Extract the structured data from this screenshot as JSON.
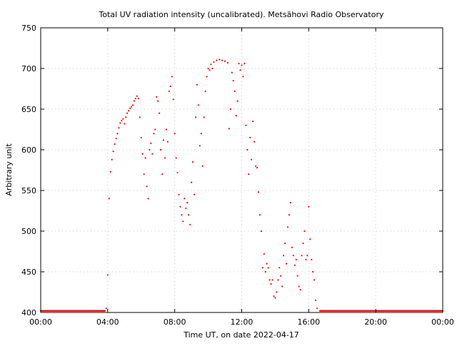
{
  "chart_data": {
    "type": "scatter",
    "title": "Total UV radiation intensity (uncalibrated). Metsähovi Radio Observatory",
    "xlabel": "Time UT, on date 2022-04-17",
    "ylabel": "Arbitrary unit",
    "xlim": [
      "00:00",
      "24:00"
    ],
    "ylim": [
      400,
      750
    ],
    "x_ticks": [
      "00:00",
      "04:00",
      "08:00",
      "12:00",
      "16:00",
      "20:00",
      "00:00"
    ],
    "y_ticks": [
      400,
      450,
      500,
      550,
      600,
      650,
      700,
      750
    ],
    "grid": true,
    "marker_color": "#ff0000",
    "series": [
      {
        "points": [
          [
            "00:00",
            402
          ],
          [
            "01:00",
            402
          ],
          [
            "02:00",
            402
          ],
          [
            "03:00",
            402
          ],
          [
            "03:50",
            402
          ],
          [
            "03:55",
            405
          ],
          [
            "04:00",
            446
          ],
          [
            "04:05",
            540
          ],
          [
            "04:10",
            573
          ],
          [
            "04:15",
            588
          ],
          [
            "04:20",
            598
          ],
          [
            "04:25",
            607
          ],
          [
            "04:30",
            614
          ],
          [
            "04:35",
            620
          ],
          [
            "04:40",
            627
          ],
          [
            "04:45",
            633
          ],
          [
            "04:50",
            636
          ],
          [
            "04:55",
            638
          ],
          [
            "05:00",
            632
          ],
          [
            "05:05",
            640
          ],
          [
            "05:10",
            645
          ],
          [
            "05:15",
            648
          ],
          [
            "05:20",
            651
          ],
          [
            "05:25",
            653
          ],
          [
            "05:30",
            655
          ],
          [
            "05:35",
            660
          ],
          [
            "05:40",
            663
          ],
          [
            "05:45",
            666
          ],
          [
            "05:50",
            663
          ],
          [
            "05:55",
            640
          ],
          [
            "06:00",
            615
          ],
          [
            "06:05",
            595
          ],
          [
            "06:10",
            570
          ],
          [
            "06:15",
            590
          ],
          [
            "06:20",
            555
          ],
          [
            "06:25",
            540
          ],
          [
            "06:30",
            600
          ],
          [
            "06:35",
            608
          ],
          [
            "06:40",
            595
          ],
          [
            "06:45",
            620
          ],
          [
            "06:50",
            625
          ],
          [
            "06:55",
            665
          ],
          [
            "07:00",
            660
          ],
          [
            "07:05",
            645
          ],
          [
            "07:10",
            600
          ],
          [
            "07:15",
            570
          ],
          [
            "07:20",
            612
          ],
          [
            "07:25",
            590
          ],
          [
            "07:30",
            625
          ],
          [
            "07:35",
            610
          ],
          [
            "07:40",
            672
          ],
          [
            "07:45",
            678
          ],
          [
            "07:50",
            690
          ],
          [
            "07:55",
            662
          ],
          [
            "08:00",
            620
          ],
          [
            "08:05",
            590
          ],
          [
            "08:10",
            572
          ],
          [
            "08:15",
            545
          ],
          [
            "08:20",
            530
          ],
          [
            "08:25",
            520
          ],
          [
            "08:30",
            512
          ],
          [
            "08:35",
            540
          ],
          [
            "08:40",
            528
          ],
          [
            "08:45",
            535
          ],
          [
            "08:50",
            520
          ],
          [
            "08:55",
            508
          ],
          [
            "09:00",
            560
          ],
          [
            "09:05",
            585
          ],
          [
            "09:10",
            545
          ],
          [
            "09:15",
            640
          ],
          [
            "09:20",
            680
          ],
          [
            "09:25",
            655
          ],
          [
            "09:30",
            605
          ],
          [
            "09:35",
            620
          ],
          [
            "09:40",
            580
          ],
          [
            "09:45",
            640
          ],
          [
            "09:50",
            672
          ],
          [
            "09:55",
            690
          ],
          [
            "10:00",
            700
          ],
          [
            "10:05",
            698
          ],
          [
            "10:10",
            705
          ],
          [
            "10:15",
            700
          ],
          [
            "10:20",
            708
          ],
          [
            "10:30",
            710
          ],
          [
            "10:40",
            711
          ],
          [
            "10:50",
            710
          ],
          [
            "11:00",
            709
          ],
          [
            "11:10",
            707
          ],
          [
            "11:15",
            626
          ],
          [
            "11:20",
            650
          ],
          [
            "11:25",
            695
          ],
          [
            "11:30",
            685
          ],
          [
            "11:35",
            672
          ],
          [
            "11:40",
            642
          ],
          [
            "11:45",
            660
          ],
          [
            "11:50",
            706
          ],
          [
            "11:55",
            698
          ],
          [
            "12:00",
            704
          ],
          [
            "12:05",
            690
          ],
          [
            "12:10",
            706
          ],
          [
            "12:15",
            630
          ],
          [
            "12:20",
            600
          ],
          [
            "12:25",
            570
          ],
          [
            "12:30",
            615
          ],
          [
            "12:35",
            588
          ],
          [
            "12:40",
            635
          ],
          [
            "12:45",
            610
          ],
          [
            "12:50",
            580
          ],
          [
            "12:55",
            578
          ],
          [
            "13:00",
            548
          ],
          [
            "13:05",
            520
          ],
          [
            "13:10",
            500
          ],
          [
            "13:15",
            455
          ],
          [
            "13:20",
            472
          ],
          [
            "13:25",
            450
          ],
          [
            "13:30",
            460
          ],
          [
            "13:35",
            455
          ],
          [
            "13:40",
            440
          ],
          [
            "13:45",
            435
          ],
          [
            "13:50",
            440
          ],
          [
            "13:55",
            420
          ],
          [
            "14:00",
            418
          ],
          [
            "14:05",
            425
          ],
          [
            "14:10",
            440
          ],
          [
            "14:15",
            455
          ],
          [
            "14:20",
            445
          ],
          [
            "14:25",
            432
          ],
          [
            "14:30",
            470
          ],
          [
            "14:35",
            485
          ],
          [
            "14:40",
            460
          ],
          [
            "14:45",
            505
          ],
          [
            "14:50",
            520
          ],
          [
            "14:55",
            535
          ],
          [
            "15:00",
            480
          ],
          [
            "15:05",
            470
          ],
          [
            "15:10",
            458
          ],
          [
            "15:15",
            465
          ],
          [
            "15:20",
            445
          ],
          [
            "15:25",
            432
          ],
          [
            "15:30",
            428
          ],
          [
            "15:35",
            470
          ],
          [
            "15:40",
            485
          ],
          [
            "15:45",
            500
          ],
          [
            "15:50",
            465
          ],
          [
            "15:55",
            470
          ],
          [
            "16:00",
            530
          ],
          [
            "16:05",
            490
          ],
          [
            "16:10",
            465
          ],
          [
            "16:15",
            450
          ],
          [
            "16:20",
            440
          ],
          [
            "16:25",
            415
          ],
          [
            "16:30",
            405
          ],
          [
            "16:40",
            402
          ],
          [
            "17:00",
            402
          ],
          [
            "18:00",
            402
          ],
          [
            "19:00",
            402
          ],
          [
            "20:00",
            402
          ],
          [
            "21:00",
            402
          ],
          [
            "22:00",
            402
          ],
          [
            "23:00",
            402
          ],
          [
            "24:00",
            402
          ]
        ]
      }
    ]
  }
}
